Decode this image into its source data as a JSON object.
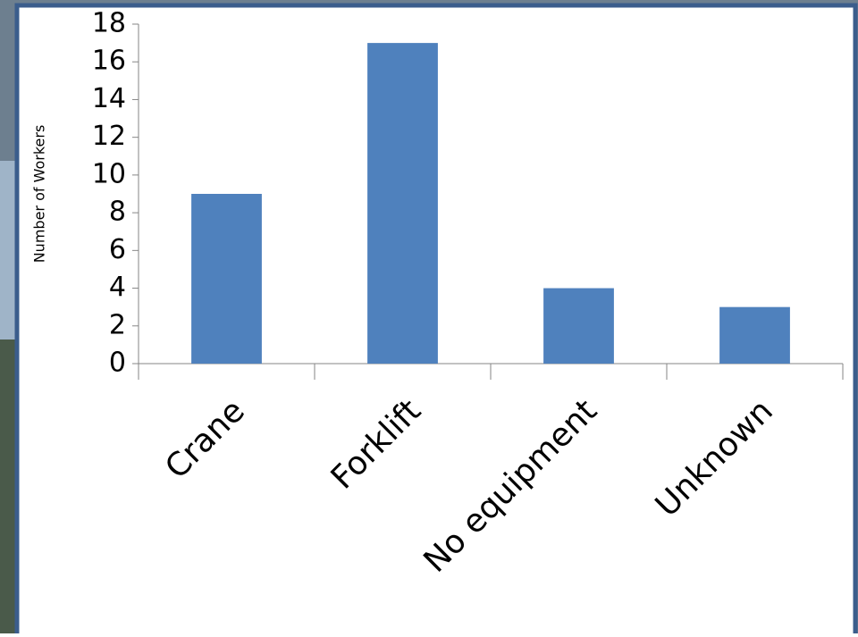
{
  "chart_data": {
    "type": "bar",
    "y_label": "Number of Workers",
    "categories": [
      "Crane",
      "Forklift",
      "No equipment",
      "Unknown"
    ],
    "values": [
      9,
      17,
      4,
      3
    ],
    "color": "#4f81bd",
    "ylim": [
      0,
      18
    ],
    "yticks": [
      0,
      2,
      4,
      6,
      8,
      10,
      12,
      14,
      16,
      18
    ],
    "grid": false
  }
}
